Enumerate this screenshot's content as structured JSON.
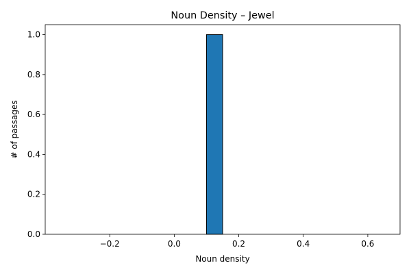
{
  "chart_data": {
    "type": "bar",
    "title": "Noun Density – Jewel",
    "xlabel": "Noun density",
    "ylabel": "# of passages",
    "bins": [
      {
        "x0": -0.35,
        "x1": -0.3,
        "value": 0
      },
      {
        "x0": -0.3,
        "x1": -0.25,
        "value": 0
      },
      {
        "x0": -0.25,
        "x1": -0.2,
        "value": 0
      },
      {
        "x0": -0.2,
        "x1": -0.15,
        "value": 0
      },
      {
        "x0": -0.15,
        "x1": -0.1,
        "value": 0
      },
      {
        "x0": -0.1,
        "x1": -0.05,
        "value": 0
      },
      {
        "x0": -0.05,
        "x1": 0.0,
        "value": 0
      },
      {
        "x0": 0.0,
        "x1": 0.05,
        "value": 0
      },
      {
        "x0": 0.05,
        "x1": 0.1,
        "value": 0
      },
      {
        "x0": 0.1,
        "x1": 0.15,
        "value": 1
      },
      {
        "x0": 0.15,
        "x1": 0.2,
        "value": 0
      },
      {
        "x0": 0.2,
        "x1": 0.25,
        "value": 0
      },
      {
        "x0": 0.25,
        "x1": 0.3,
        "value": 0
      },
      {
        "x0": 0.3,
        "x1": 0.35,
        "value": 0
      },
      {
        "x0": 0.35,
        "x1": 0.4,
        "value": 0
      },
      {
        "x0": 0.4,
        "x1": 0.45,
        "value": 0
      },
      {
        "x0": 0.45,
        "x1": 0.5,
        "value": 0
      },
      {
        "x0": 0.5,
        "x1": 0.55,
        "value": 0
      },
      {
        "x0": 0.55,
        "x1": 0.6,
        "value": 0
      },
      {
        "x0": 0.6,
        "x1": 0.65,
        "value": 0
      }
    ],
    "xlim": [
      -0.4,
      0.7
    ],
    "ylim": [
      0,
      1.05
    ],
    "xticks": [
      -0.2,
      0.0,
      0.2,
      0.4,
      0.6
    ],
    "xtick_labels": [
      "−0.2",
      "0.0",
      "0.2",
      "0.4",
      "0.6"
    ],
    "yticks": [
      0.0,
      0.2,
      0.4,
      0.6,
      0.8,
      1.0
    ],
    "ytick_labels": [
      "0.0",
      "0.2",
      "0.4",
      "0.6",
      "0.8",
      "1.0"
    ],
    "grid": false,
    "colors": {
      "bar_fill": "#1f77b4",
      "bar_edge": "#000000",
      "axis": "#000000"
    }
  }
}
